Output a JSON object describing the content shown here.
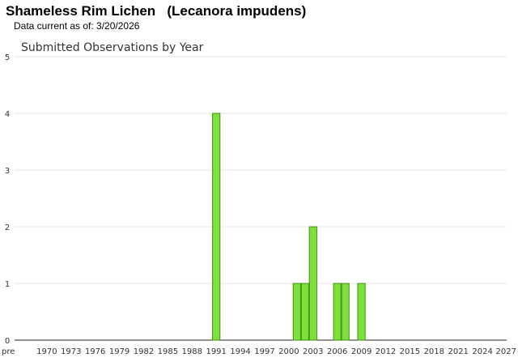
{
  "page": {
    "title": "Shameless Rim Lichen   (Lecanora impudens)",
    "subtitle": "Data current as of: 3/20/2026"
  },
  "chart_data": {
    "type": "bar",
    "title": "Submitted Observations by Year",
    "xlabel": "",
    "ylabel": "",
    "ylim": [
      0,
      5
    ],
    "yticks": [
      0,
      1,
      2,
      3,
      4,
      5
    ],
    "grid": true,
    "legend": "none",
    "bar_color": "#7ee03a",
    "bar_edge_color": "#3f8f12",
    "x_range": [
      1966,
      2027
    ],
    "tick_labels": [
      {
        "label": "pre",
        "year": 1966
      },
      {
        "label": "1970",
        "year": 1970
      },
      {
        "label": "1973",
        "year": 1973
      },
      {
        "label": "1976",
        "year": 1976
      },
      {
        "label": "1979",
        "year": 1979
      },
      {
        "label": "1982",
        "year": 1982
      },
      {
        "label": "1985",
        "year": 1985
      },
      {
        "label": "1988",
        "year": 1988
      },
      {
        "label": "1991",
        "year": 1991
      },
      {
        "label": "1994",
        "year": 1994
      },
      {
        "label": "1997",
        "year": 1997
      },
      {
        "label": "2000",
        "year": 2000
      },
      {
        "label": "2003",
        "year": 2003
      },
      {
        "label": "2006",
        "year": 2006
      },
      {
        "label": "2009",
        "year": 2009
      },
      {
        "label": "2012",
        "year": 2012
      },
      {
        "label": "2015",
        "year": 2015
      },
      {
        "label": "2018",
        "year": 2018
      },
      {
        "label": "2021",
        "year": 2021
      },
      {
        "label": "2024",
        "year": 2024
      },
      {
        "label": "2027",
        "year": 2027
      }
    ],
    "x": [
      1991,
      2001,
      2002,
      2003,
      2006,
      2007,
      2009
    ],
    "values": [
      4,
      1,
      1,
      2,
      1,
      1,
      1
    ]
  }
}
